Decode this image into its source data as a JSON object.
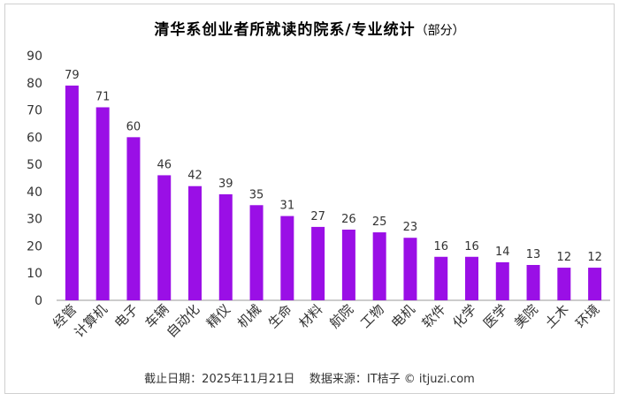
{
  "title": "清华系创业者所就读的院系/专业统计",
  "subtitle": "（部分）",
  "footer": {
    "date_text": "截止日期：2025年11月21日",
    "source_text": "数据来源：IT桔子 © itjuzi.com"
  },
  "colors": {
    "bar": "#9a0fe6",
    "axis": "#999999",
    "text": "#333333"
  },
  "chart_data": {
    "type": "bar",
    "title": "清华系创业者所就读的院系/专业统计",
    "subtitle": "（部分）",
    "xlabel": "",
    "ylabel": "",
    "ylim": [
      0,
      90
    ],
    "yticks": [
      0,
      10,
      20,
      30,
      40,
      50,
      60,
      70,
      80,
      90
    ],
    "grid": false,
    "legend": "none",
    "categories": [
      "经管",
      "计算机",
      "电子",
      "车辆",
      "自动化",
      "精仪",
      "机械",
      "生命",
      "材料",
      "航院",
      "工物",
      "电机",
      "软件",
      "化学",
      "医学",
      "美院",
      "土木",
      "环境"
    ],
    "values": [
      79,
      71,
      60,
      46,
      42,
      39,
      35,
      31,
      27,
      26,
      25,
      23,
      16,
      16,
      14,
      13,
      12,
      12
    ],
    "data_labels": true
  }
}
